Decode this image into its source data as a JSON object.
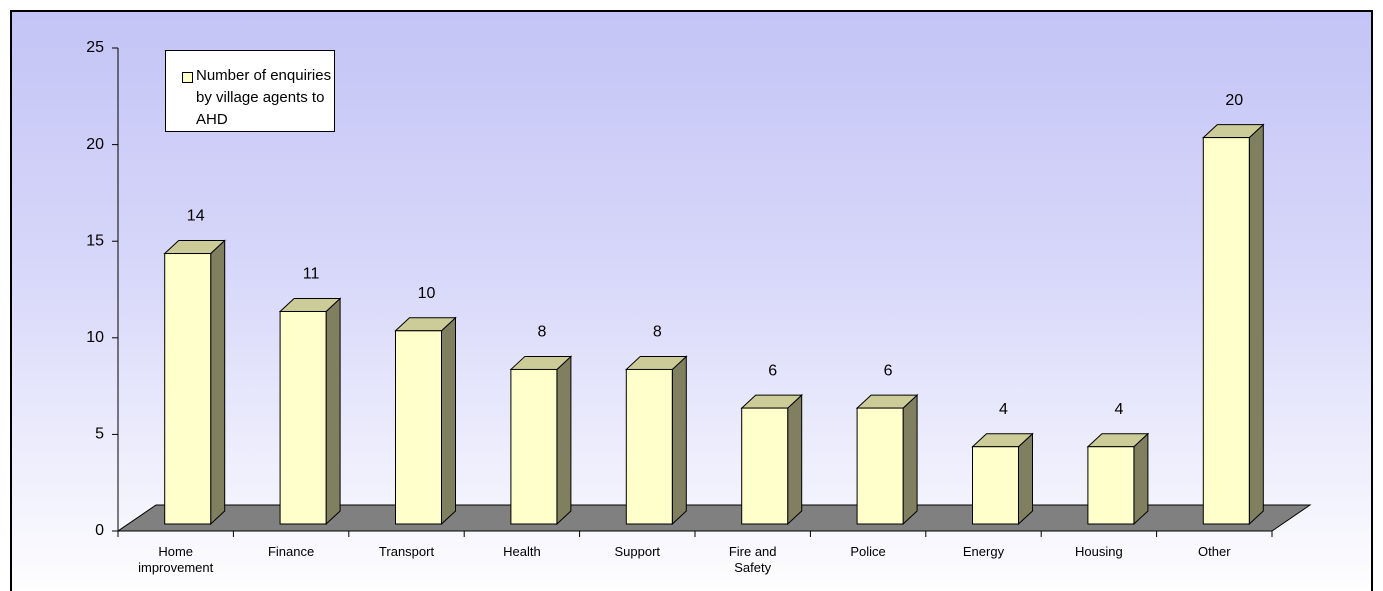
{
  "chart_data": {
    "type": "bar3d",
    "categories": [
      "Home improvement",
      "Finance",
      "Transport",
      "Health",
      "Support",
      "Fire and Safety",
      "Police",
      "Energy",
      "Housing",
      "Other"
    ],
    "series": [
      {
        "name": "Number of enquiries by village agents to AHD",
        "color": "#ffffcc",
        "values": [
          14,
          11,
          10,
          8,
          8,
          6,
          6,
          4,
          4,
          20
        ]
      }
    ],
    "ylim": [
      0,
      25
    ],
    "yticks": [
      0,
      5,
      10,
      15,
      20,
      25
    ],
    "grid": false,
    "legend": "top-left",
    "data_labels": true
  }
}
